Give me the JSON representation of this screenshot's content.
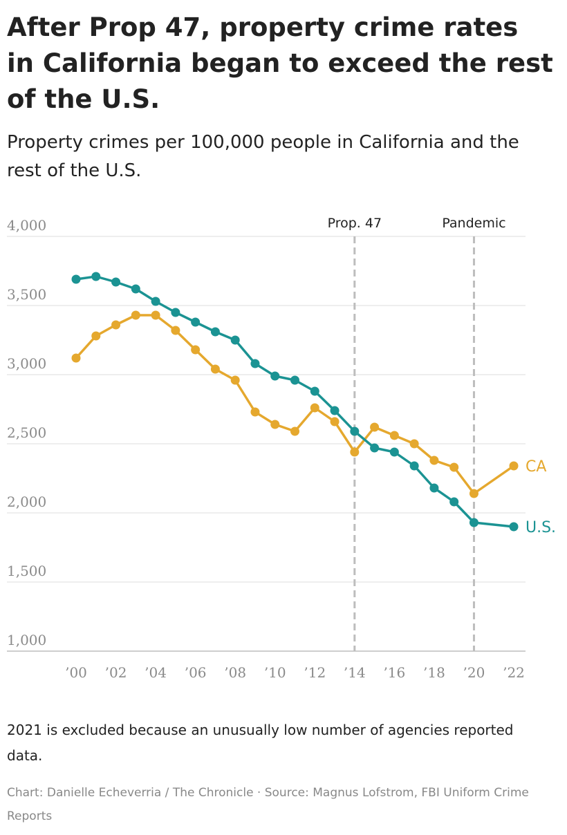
{
  "title": "After Prop 47, property crime rates in California began to exceed the rest of the U.S.",
  "subtitle": "Property crimes per 100,000 people in California and the rest of the U.S.",
  "note": "2021 is excluded because an unusually low number of agencies reported data.",
  "credit": "Chart: Danielle Echeverria / The Chronicle · Source: Magnus Lofstrom, FBI Uniform Crime Reports",
  "chart_data": {
    "type": "line",
    "title": "After Prop 47, property crime rates in California began to exceed the rest of the U.S.",
    "subtitle": "Property crimes per 100,000 people in California and the rest of the U.S.",
    "xlabel": "",
    "ylabel": "",
    "ylim": [
      1000,
      4000
    ],
    "xlim": [
      2000,
      2022
    ],
    "grid": true,
    "y_ticks": [
      1000,
      1500,
      2000,
      2500,
      3000,
      3500,
      4000
    ],
    "y_tick_labels": [
      "1,000",
      "1,500",
      "2,000",
      "2,500",
      "3,000",
      "3,500",
      "4,000"
    ],
    "x_ticks": [
      2000,
      2002,
      2004,
      2006,
      2008,
      2010,
      2012,
      2014,
      2016,
      2018,
      2020,
      2022
    ],
    "x_tick_labels": [
      "’00",
      "’02",
      "’04",
      "’06",
      "’08",
      "’10",
      "’12",
      "’14",
      "’16",
      "’18",
      "’20",
      "’22"
    ],
    "annotations": [
      {
        "x": 2014,
        "label": "Prop. 47",
        "style": "dashed-vertical"
      },
      {
        "x": 2020,
        "label": "Pandemic",
        "style": "dashed-vertical"
      }
    ],
    "series": [
      {
        "name": "CA",
        "color": "#E5A82E",
        "x": [
          2000,
          2001,
          2002,
          2003,
          2004,
          2005,
          2006,
          2007,
          2008,
          2009,
          2010,
          2011,
          2012,
          2013,
          2014,
          2015,
          2016,
          2017,
          2018,
          2019,
          2020,
          2022
        ],
        "y": [
          3120,
          3280,
          3360,
          3430,
          3430,
          3320,
          3180,
          3040,
          2960,
          2730,
          2640,
          2590,
          2760,
          2660,
          2440,
          2620,
          2560,
          2500,
          2380,
          2330,
          2140,
          2340
        ]
      },
      {
        "name": "U.S.",
        "color": "#1B9393",
        "x": [
          2000,
          2001,
          2002,
          2003,
          2004,
          2005,
          2006,
          2007,
          2008,
          2009,
          2010,
          2011,
          2012,
          2013,
          2014,
          2015,
          2016,
          2017,
          2018,
          2019,
          2020,
          2022
        ],
        "y": [
          3690,
          3710,
          3670,
          3620,
          3530,
          3450,
          3380,
          3310,
          3250,
          3080,
          2990,
          2960,
          2880,
          2740,
          2590,
          2470,
          2440,
          2340,
          2180,
          2080,
          1930,
          1900
        ]
      }
    ]
  }
}
